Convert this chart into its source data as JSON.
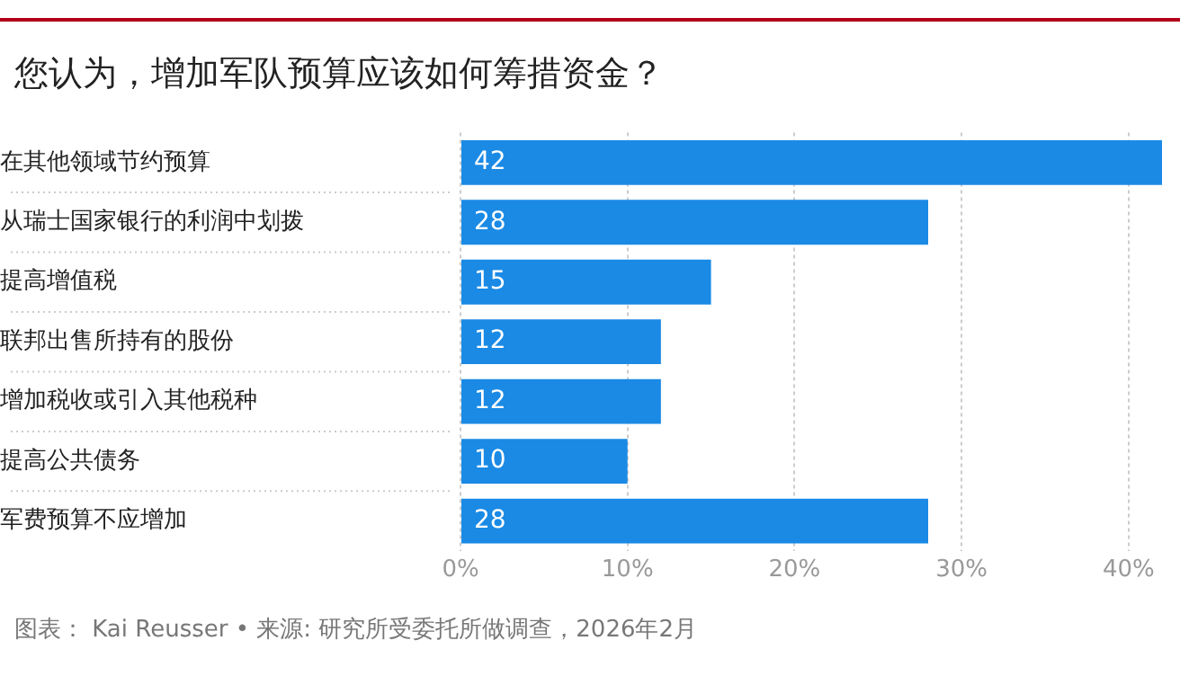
{
  "chart_data": {
    "type": "bar",
    "orientation": "horizontal",
    "title": "您认为，增加军队预算应该如何筹措资金？",
    "categories": [
      "在其他领域节约预算",
      "从瑞士国家银行的利润中划拨",
      "提高增值税",
      "联邦出售所持有的股份",
      "增加税收或引入其他税种",
      "提高公共债务",
      "军费预算不应增加"
    ],
    "values": [
      42,
      28,
      15,
      12,
      12,
      10,
      28
    ],
    "color": "#1a8ae5",
    "xlim": [
      0,
      42
    ],
    "xticks": [
      {
        "value": 0,
        "label": "0%"
      },
      {
        "value": 10,
        "label": "10%"
      },
      {
        "value": 20,
        "label": "20%"
      },
      {
        "value": 30,
        "label": "30%"
      },
      {
        "value": 40,
        "label": "40%"
      }
    ],
    "grid": "x",
    "data_labels": true,
    "legend": false,
    "annotations": [
      "图表： Kai Reusser • 来源: 研究所受委托所做调查，2026年2月"
    ]
  }
}
